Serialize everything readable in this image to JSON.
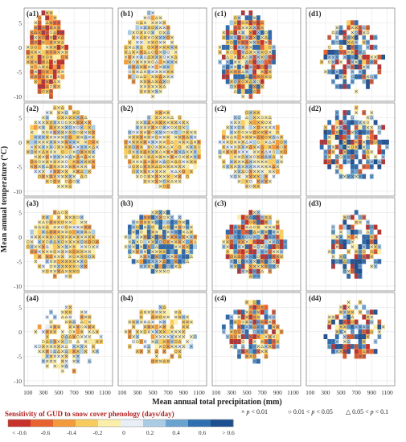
{
  "figure": {
    "ylabel": "Mean annual temperature (°C)",
    "xlabel": "Mean annual total precipitation (mm)",
    "colorbar_title": "Sensitivity of GUD to snow cover phenology (days/day)",
    "colorbar_ticks": [
      "< -0.6",
      "-0.6",
      "-0.4",
      "-0.2",
      "0",
      "0.2",
      "0.4",
      "0.6",
      "> 0.6"
    ],
    "colorbar_colors": [
      "#c8312a",
      "#e8622f",
      "#f39a3c",
      "#f7cb5e",
      "#fbeeaa",
      "#e7eef6",
      "#a9cbe3",
      "#6aa3cf",
      "#2f6fb0",
      "#1c4f8f"
    ],
    "legend": [
      {
        "marker": "×",
        "label_prefix": "",
        "label": "p < 0.01"
      },
      {
        "marker": "○",
        "label_prefix": "0.01 < ",
        "label": "p < 0.05"
      },
      {
        "marker": "△",
        "label_prefix": "0.05 < ",
        "label": "p < 0.1"
      }
    ],
    "legend_display": [
      {
        "pre": "",
        "p": "p",
        "post": " < 0.01"
      },
      {
        "pre": "0.01 < ",
        "p": "p",
        "post": " < 0.05"
      },
      {
        "pre": "0.05 < ",
        "p": "p",
        "post": " < 0.1"
      }
    ]
  },
  "chart_data": [
    {
      "label": "(a1)",
      "type": "heatmap",
      "xlim": [
        50,
        1200
      ],
      "ylim": [
        -11,
        8
      ],
      "xticks": [],
      "yticks": [
        -10,
        -5,
        0,
        5
      ],
      "dominant": "warm",
      "extent": {
        "x": [
          100,
          600
        ],
        "y": [
          -10,
          7
        ]
      }
    },
    {
      "label": "(b1)",
      "type": "heatmap",
      "xlim": [
        50,
        1200
      ],
      "ylim": [
        -11,
        8
      ],
      "xticks": [],
      "yticks": [],
      "dominant": "yellow",
      "extent": {
        "x": [
          150,
          800
        ],
        "y": [
          -10,
          7
        ]
      }
    },
    {
      "label": "(c1)",
      "type": "heatmap",
      "xlim": [
        50,
        1200
      ],
      "ylim": [
        -11,
        8
      ],
      "xticks": [],
      "yticks": [],
      "dominant": "mixed-warm",
      "extent": {
        "x": [
          150,
          850
        ],
        "y": [
          -10,
          7
        ]
      }
    },
    {
      "label": "(d1)",
      "type": "heatmap",
      "xlim": [
        50,
        1200
      ],
      "ylim": [
        -11,
        8
      ],
      "xticks": [],
      "yticks": [],
      "dominant": "blue",
      "extent": {
        "x": [
          250,
          1050
        ],
        "y": [
          -9,
          5
        ]
      }
    },
    {
      "label": "(a2)",
      "type": "heatmap",
      "xlim": [
        50,
        1200
      ],
      "ylim": [
        -11,
        8
      ],
      "xticks": [],
      "yticks": [
        -10,
        -5,
        0,
        5
      ],
      "dominant": "yellow",
      "extent": {
        "x": [
          100,
          1000
        ],
        "y": [
          -9,
          7
        ]
      }
    },
    {
      "label": "(b2)",
      "type": "heatmap",
      "xlim": [
        50,
        1200
      ],
      "ylim": [
        -11,
        8
      ],
      "xticks": [],
      "yticks": [],
      "dominant": "yellow",
      "extent": {
        "x": [
          150,
          1100
        ],
        "y": [
          -9,
          6
        ]
      }
    },
    {
      "label": "(c2)",
      "type": "heatmap",
      "xlim": [
        50,
        1200
      ],
      "ylim": [
        -11,
        8
      ],
      "xticks": [],
      "yticks": [],
      "dominant": "yellow",
      "extent": {
        "x": [
          150,
          1000
        ],
        "y": [
          -9,
          6
        ]
      }
    },
    {
      "label": "(d2)",
      "type": "heatmap",
      "xlim": [
        50,
        1200
      ],
      "ylim": [
        -11,
        8
      ],
      "xticks": [],
      "yticks": [],
      "dominant": "blue",
      "extent": {
        "x": [
          250,
          1100
        ],
        "y": [
          -8,
          7
        ]
      }
    },
    {
      "label": "(a3)",
      "type": "heatmap",
      "xlim": [
        50,
        1200
      ],
      "ylim": [
        -11,
        8
      ],
      "xticks": [],
      "yticks": [
        -10,
        -5,
        0,
        5
      ],
      "dominant": "yellow",
      "extent": {
        "x": [
          100,
          1000
        ],
        "y": [
          -8,
          5
        ]
      }
    },
    {
      "label": "(b3)",
      "type": "heatmap",
      "xlim": [
        50,
        1200
      ],
      "ylim": [
        -11,
        8
      ],
      "xticks": [],
      "yticks": [],
      "dominant": "mixed-cool",
      "extent": {
        "x": [
          150,
          1050
        ],
        "y": [
          -7,
          5
        ]
      }
    },
    {
      "label": "(c3)",
      "type": "heatmap",
      "xlim": [
        50,
        1200
      ],
      "ylim": [
        -11,
        8
      ],
      "xticks": [],
      "yticks": [],
      "dominant": "mixed",
      "extent": {
        "x": [
          200,
          1000
        ],
        "y": [
          -8,
          5
        ]
      }
    },
    {
      "label": "(d3)",
      "type": "heatmap",
      "xlim": [
        50,
        1200
      ],
      "ylim": [
        -11,
        8
      ],
      "xticks": [],
      "yticks": [],
      "dominant": "blue",
      "extent": {
        "x": [
          300,
          1050
        ],
        "y": [
          -8,
          5
        ]
      }
    },
    {
      "label": "(a4)",
      "type": "heatmap",
      "xlim": [
        50,
        1200
      ],
      "ylim": [
        -11,
        8
      ],
      "xticks": [
        100,
        300,
        500,
        700,
        900,
        1100
      ],
      "yticks": [
        -10,
        -5,
        0,
        5
      ],
      "dominant": "yellow",
      "extent": {
        "x": [
          150,
          1050
        ],
        "y": [
          -8,
          5
        ]
      }
    },
    {
      "label": "(b4)",
      "type": "heatmap",
      "xlim": [
        50,
        1200
      ],
      "ylim": [
        -11,
        8
      ],
      "xticks": [
        100,
        300,
        500,
        700,
        900,
        1100
      ],
      "yticks": [],
      "dominant": "yellow",
      "extent": {
        "x": [
          150,
          1050
        ],
        "y": [
          -6,
          5
        ]
      }
    },
    {
      "label": "(c4)",
      "type": "heatmap",
      "xlim": [
        50,
        1200
      ],
      "ylim": [
        -11,
        8
      ],
      "xticks": [
        100,
        300,
        500,
        700,
        900,
        1100
      ],
      "yticks": [],
      "dominant": "mixed",
      "extent": {
        "x": [
          200,
          950
        ],
        "y": [
          -6,
          6
        ]
      }
    },
    {
      "label": "(d4)",
      "type": "heatmap",
      "xlim": [
        50,
        1200
      ],
      "ylim": [
        -11,
        8
      ],
      "xticks": [
        100,
        300,
        500,
        700,
        900,
        1100
      ],
      "yticks": [],
      "dominant": "blue",
      "extent": {
        "x": [
          300,
          1050
        ],
        "y": [
          -6,
          6
        ]
      }
    }
  ]
}
